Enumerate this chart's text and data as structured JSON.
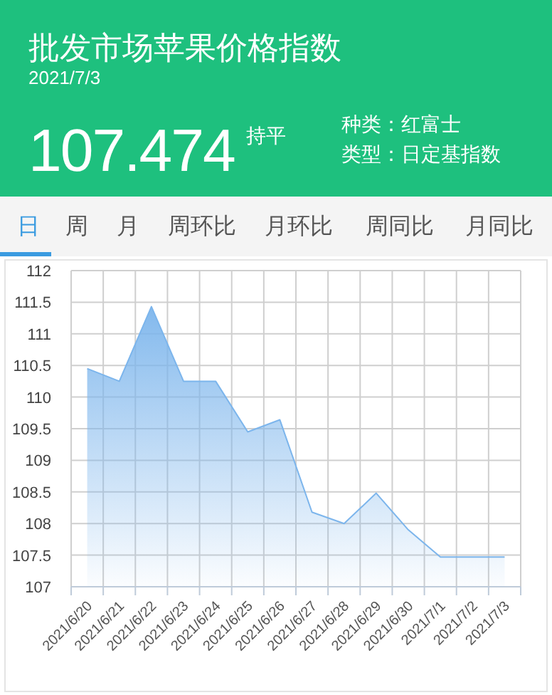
{
  "chart_data": {
    "type": "area",
    "title": "批发市场苹果价格指数",
    "subtitle": "2021/7/3",
    "annotations": [
      "107.474",
      "持平",
      "种类：红富士",
      "类型：日定基指数",
      "日",
      "周",
      "月",
      "周环比",
      "月环比",
      "周同比",
      "月同比"
    ],
    "categories": [
      "2021/6/20",
      "2021/6/21",
      "2021/6/22",
      "2021/6/23",
      "2021/6/24",
      "2021/6/25",
      "2021/6/26",
      "2021/6/27",
      "2021/6/28",
      "2021/6/29",
      "2021/6/30",
      "2021/7/1",
      "2021/7/2",
      "2021/7/3"
    ],
    "series": [
      {
        "color": "#7cb5ec",
        "values": [
          110.45,
          110.25,
          111.43,
          110.25,
          110.25,
          109.45,
          109.64,
          108.18,
          108.0,
          108.48,
          107.9,
          107.47,
          107.47,
          107.47
        ]
      }
    ],
    "ylim": [
      107,
      112
    ],
    "yticks": [
      107,
      107.5,
      108,
      108.5,
      109,
      109.5,
      110,
      110.5,
      111,
      111.5,
      112
    ],
    "grid": true
  }
}
